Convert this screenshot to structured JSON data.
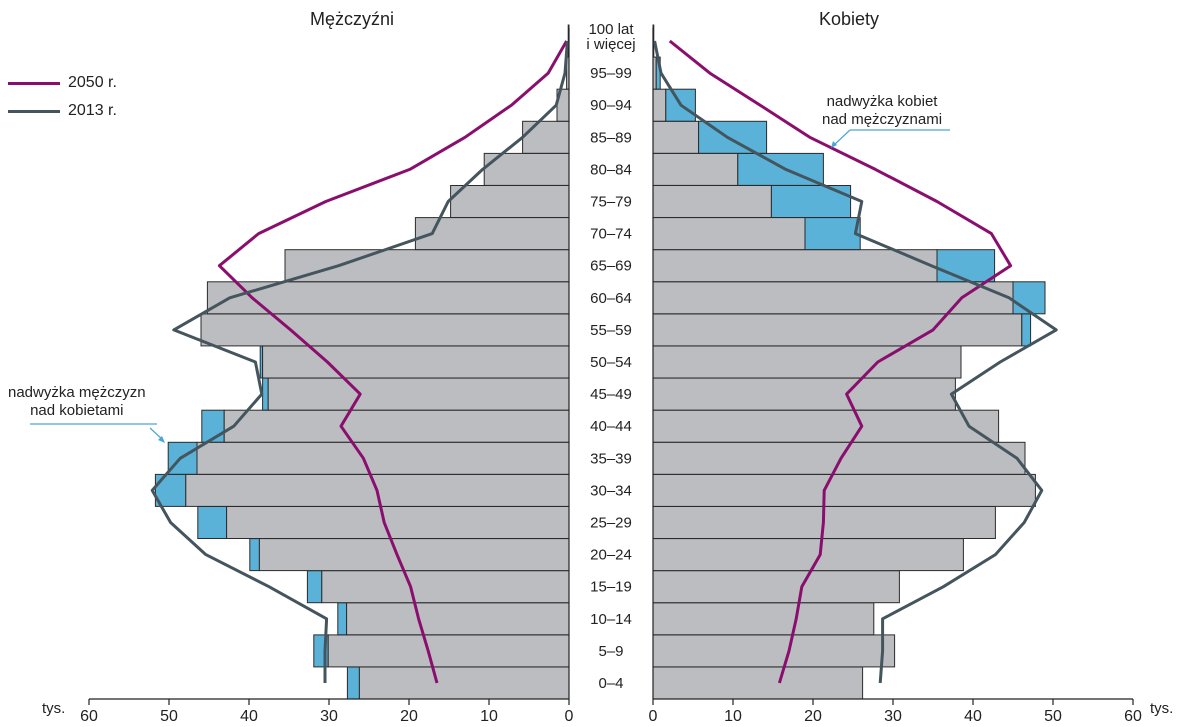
{
  "chart_data": {
    "type": "population-pyramid",
    "left_title": "Mężczyźni",
    "right_title": "Kobiety",
    "unit_label": "tys.",
    "xlim": [
      0,
      60
    ],
    "x_ticks": [
      60,
      50,
      40,
      30,
      20,
      10,
      0
    ],
    "age_groups": [
      "0–4",
      "5–9",
      "10–14",
      "15–19",
      "20–24",
      "25–29",
      "30–34",
      "35–39",
      "40–44",
      "45–49",
      "50–54",
      "55–59",
      "60–64",
      "65–69",
      "70–74",
      "75–79",
      "80–84",
      "85–89",
      "90–94",
      "95–99",
      "100 lat\ni więcej"
    ],
    "bars_2013": {
      "men": [
        26.2,
        30.1,
        27.8,
        30.9,
        38.7,
        42.8,
        47.9,
        46.5,
        43.1,
        37.6,
        38.3,
        46.0,
        45.2,
        35.5,
        19.2,
        14.8,
        10.6,
        5.8,
        1.5,
        0.3,
        0.1
      ],
      "women": [
        26.2,
        30.2,
        27.6,
        30.8,
        38.8,
        42.8,
        47.8,
        46.5,
        43.2,
        37.8,
        38.5,
        46.1,
        45.0,
        35.5,
        19.0,
        14.8,
        10.6,
        5.7,
        1.6,
        0.4,
        0.1
      ],
      "men_excess": [
        27.7,
        31.9,
        28.9,
        32.7,
        39.9,
        46.4,
        51.7,
        50.1,
        45.9,
        38.3,
        38.6,
        46.0,
        45.2,
        35.5,
        19.2,
        14.8,
        10.6,
        5.8,
        1.5,
        0.3,
        0.1
      ],
      "women_excess": [
        26.2,
        30.2,
        27.6,
        30.8,
        38.8,
        42.8,
        47.8,
        46.5,
        43.2,
        37.8,
        38.5,
        47.2,
        49.0,
        42.7,
        25.9,
        24.7,
        21.3,
        14.2,
        5.3,
        0.9,
        0.1
      ]
    },
    "series": [
      {
        "name": "2050 r.",
        "color": "#8a0e6e",
        "men": [
          16.5,
          17.6,
          18.8,
          19.8,
          21.5,
          23.1,
          24.0,
          25.7,
          28.5,
          26.1,
          30.2,
          34.8,
          39.6,
          43.7,
          38.8,
          30.4,
          19.9,
          13.0,
          7.2,
          2.6,
          0.3
        ],
        "women": [
          15.8,
          17.0,
          17.9,
          18.6,
          20.9,
          21.3,
          21.4,
          23.5,
          26.1,
          24.2,
          28.1,
          35.0,
          38.6,
          44.7,
          42.3,
          35.5,
          27.8,
          19.6,
          13.4,
          7.1,
          2.1
        ]
      },
      {
        "name": "2013 r.",
        "color": "#44555e",
        "men": [
          30.5,
          30.5,
          30.3,
          37.5,
          45.4,
          49.8,
          52.1,
          48.6,
          41.9,
          38.4,
          39.2,
          49.4,
          42.4,
          28.8,
          17.1,
          15.1,
          10.8,
          5.8,
          1.6,
          0.5,
          0.2
        ],
        "women": [
          28.4,
          28.7,
          28.7,
          36.3,
          42.8,
          46.4,
          48.6,
          45.5,
          39.5,
          37.3,
          43.4,
          50.4,
          44.5,
          34.8,
          25.3,
          26.1,
          16.6,
          9.3,
          3.5,
          1.0,
          0.2
        ]
      }
    ],
    "annotations": [
      {
        "text": "nadwyżka mężczyzn\nnad kobietami",
        "side": "left"
      },
      {
        "text": "nadwyżka kobiet\nnad mężczyznami",
        "side": "right"
      }
    ],
    "colors": {
      "bar_fill": "#bcbdc1",
      "bar_stroke": "#2b2b2b",
      "excess_fill": "#5ab2d8",
      "axis": "#222222",
      "annotation_line": "#4aa6d6"
    }
  }
}
